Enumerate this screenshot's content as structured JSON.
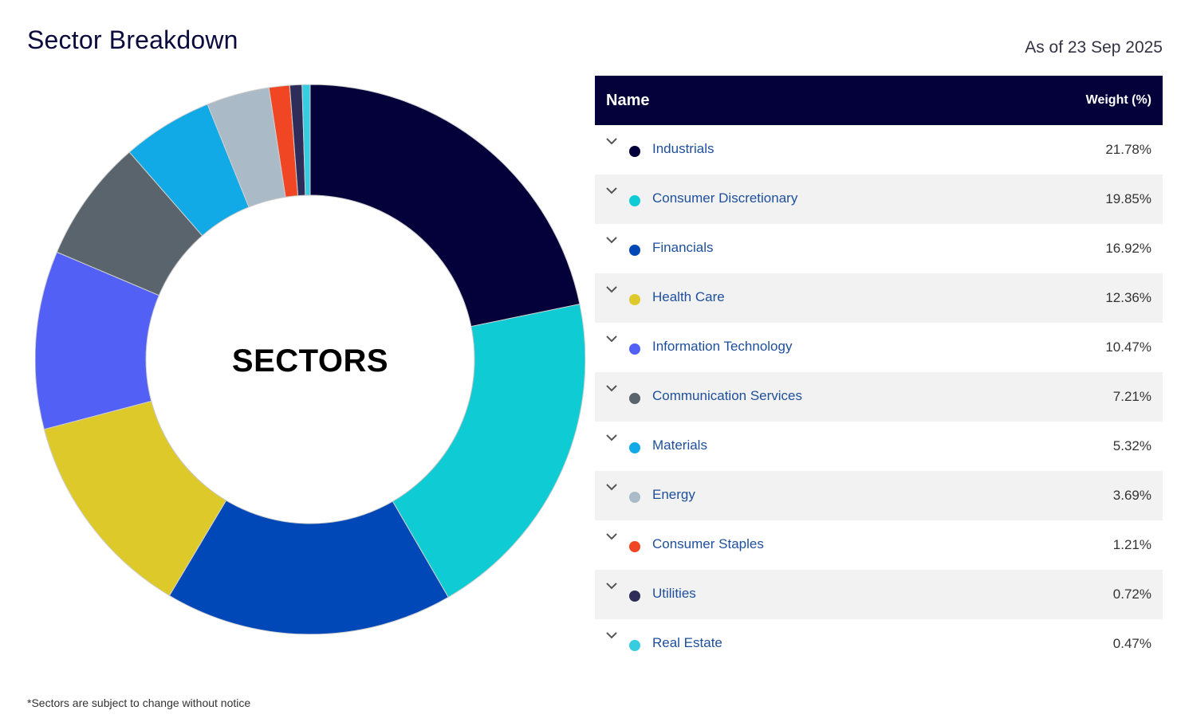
{
  "header": {
    "title": "Sector Breakdown",
    "as_of": "As of 23 Sep 2025"
  },
  "table": {
    "col_name": "Name",
    "col_weight": "Weight (%)"
  },
  "chart_data": {
    "type": "pie",
    "variant": "donut",
    "center_label": "SECTORS",
    "categories": [
      "Industrials",
      "Consumer Discretionary",
      "Financials",
      "Health Care",
      "Information Technology",
      "Communication Services",
      "Materials",
      "Energy",
      "Consumer Staples",
      "Utilities",
      "Real Estate"
    ],
    "values": [
      21.78,
      19.85,
      16.92,
      12.36,
      10.47,
      7.21,
      5.32,
      3.69,
      1.21,
      0.72,
      0.47
    ],
    "labels": [
      "21.78%",
      "19.85%",
      "16.92%",
      "12.36%",
      "10.47%",
      "7.21%",
      "5.32%",
      "3.69%",
      "1.21%",
      "0.72%",
      "0.47%"
    ],
    "colors": [
      "#04003a",
      "#0fcbd3",
      "#0047b8",
      "#ddca2a",
      "#5260f5",
      "#5a646c",
      "#12aae6",
      "#abbac7",
      "#f04624",
      "#2e2d59",
      "#36cde0"
    ],
    "legend": "right"
  },
  "footnote": "*Sectors are subject to change without notice"
}
